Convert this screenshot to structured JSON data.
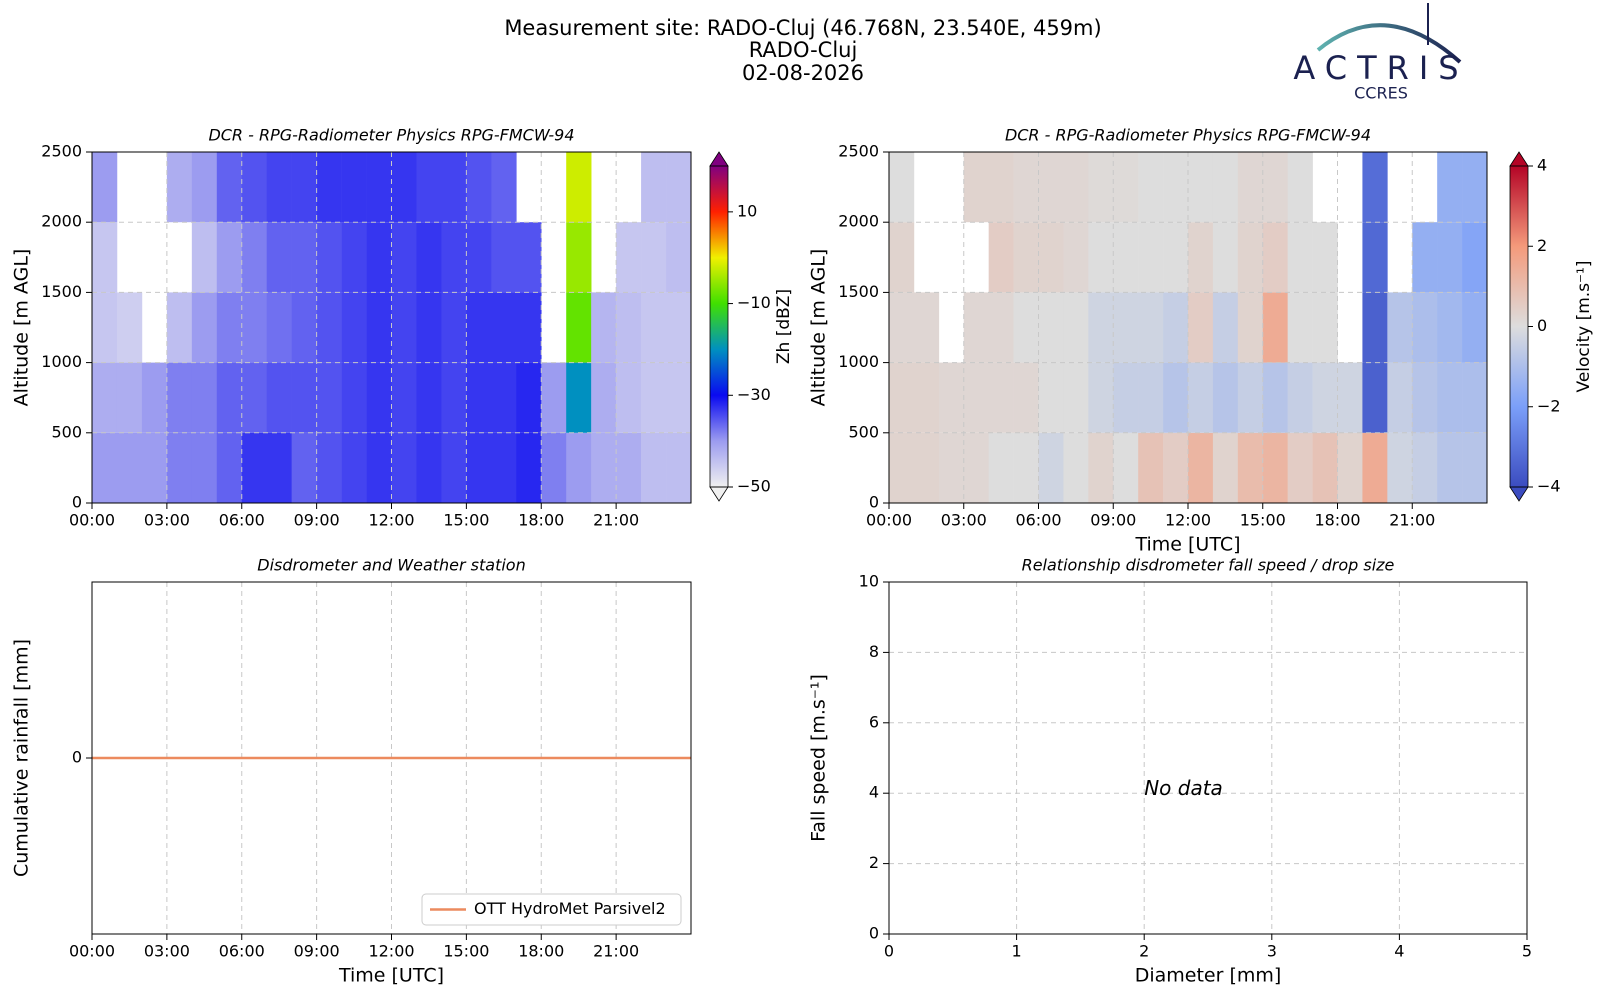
{
  "header": {
    "title_lines": [
      "Measurement site: RADO-Cluj (46.768N, 23.540E, 459m)",
      "RADO-Cluj",
      "02-08-2026"
    ]
  },
  "logo": {
    "name": "ACTRIS",
    "subtitle": "CCRES"
  },
  "chart_data": [
    {
      "type": "heatmap",
      "title": "DCR - RPG-Radiometer Physics RPG-FMCW-94",
      "ylabel": "Altitude [m AGL]",
      "xlim": [
        0,
        24
      ],
      "xticks": [
        {
          "value": 0,
          "label": "00:00"
        },
        {
          "value": 3,
          "label": "03:00"
        },
        {
          "value": 6,
          "label": "06:00"
        },
        {
          "value": 9,
          "label": "09:00"
        },
        {
          "value": 12,
          "label": "12:00"
        },
        {
          "value": 15,
          "label": "15:00"
        },
        {
          "value": 18,
          "label": "18:00"
        },
        {
          "value": 21,
          "label": "21:00"
        }
      ],
      "ylim": [
        0,
        2500
      ],
      "yticks": [
        0,
        500,
        1000,
        1500,
        2000,
        2500
      ],
      "grid": true,
      "x_edges": [
        0,
        1,
        2,
        3,
        4,
        5,
        6,
        7,
        8,
        9,
        10,
        11,
        12,
        13,
        14,
        15,
        16,
        17,
        18,
        19,
        20,
        21,
        22,
        23,
        24
      ],
      "y_edges": [
        0,
        500,
        1000,
        1500,
        2000,
        2500
      ],
      "z": [
        [
          -40,
          -40,
          -40,
          -38,
          -38,
          -36,
          -33,
          -33,
          -36,
          -35,
          -34,
          -33,
          -34,
          -33,
          -34,
          -33,
          -33,
          -32,
          -38,
          -40,
          -42,
          -42,
          -44,
          -44
        ],
        [
          -42,
          -42,
          -40,
          -38,
          -38,
          -36,
          -36,
          -35,
          -35,
          -35,
          -34,
          -33,
          -34,
          -33,
          -34,
          -33,
          -33,
          -32,
          -40,
          -20,
          -42,
          -44,
          -45,
          -45
        ],
        [
          -45,
          -46,
          null,
          -44,
          -40,
          -38,
          -38,
          -37,
          -36,
          -35,
          -34,
          -33,
          -34,
          -33,
          -34,
          -33,
          -33,
          -33,
          null,
          -8,
          -43,
          -44,
          -45,
          -45
        ],
        [
          -45,
          null,
          null,
          null,
          -44,
          -40,
          -38,
          -36,
          -36,
          -35,
          -34,
          -33,
          -34,
          -33,
          -34,
          -34,
          -35,
          -35,
          null,
          -5,
          null,
          -45,
          -45,
          -44
        ],
        [
          -40,
          null,
          null,
          -42,
          -40,
          -36,
          -35,
          -34,
          -34,
          -33,
          -33,
          -33,
          -33,
          -34,
          -34,
          -35,
          -36,
          null,
          null,
          -2,
          null,
          null,
          -44,
          -44
        ]
      ],
      "colorbar": {
        "label": "Zh [dBZ]",
        "clim": [
          -50,
          20
        ],
        "ticks": [
          {
            "value": -50,
            "label": "−50"
          },
          {
            "value": -30,
            "label": "−30"
          },
          {
            "value": -10,
            "label": "−10"
          },
          10
        ],
        "colors": [
          "#f0f0f0",
          "#9c9cf0",
          "#0a0af0",
          "#0090c0",
          "#40e000",
          "#f0f000",
          "#ff2000",
          "#800080"
        ],
        "extend": "both"
      }
    },
    {
      "type": "heatmap",
      "title": "DCR - RPG-Radiometer Physics RPG-FMCW-94",
      "xlabel": "Time [UTC]",
      "ylabel": "Altitude [m AGL]",
      "xlim": [
        0,
        24
      ],
      "xticks": [
        {
          "value": 0,
          "label": "00:00"
        },
        {
          "value": 3,
          "label": "03:00"
        },
        {
          "value": 6,
          "label": "06:00"
        },
        {
          "value": 9,
          "label": "09:00"
        },
        {
          "value": 12,
          "label": "12:00"
        },
        {
          "value": 15,
          "label": "15:00"
        },
        {
          "value": 18,
          "label": "18:00"
        },
        {
          "value": 21,
          "label": "21:00"
        }
      ],
      "ylim": [
        0,
        2500
      ],
      "yticks": [
        0,
        500,
        1000,
        1500,
        2000,
        2500
      ],
      "grid": true,
      "x_edges": [
        0,
        1,
        2,
        3,
        4,
        5,
        6,
        7,
        8,
        9,
        10,
        11,
        12,
        13,
        14,
        15,
        16,
        17,
        18,
        19,
        20,
        21,
        22,
        23,
        24
      ],
      "y_edges": [
        0,
        500,
        1000,
        1500,
        2000,
        2500
      ],
      "z": [
        [
          0.3,
          0.3,
          0.2,
          0.2,
          0,
          0,
          -0.3,
          0,
          0.3,
          0,
          0.8,
          0.5,
          1.2,
          0.3,
          1.0,
          1.2,
          0.5,
          0.8,
          0.3,
          1.5,
          -0.3,
          -0.5,
          -0.8,
          -0.8
        ],
        [
          0.3,
          0.3,
          0.2,
          0.2,
          0.2,
          0.2,
          0,
          0,
          -0.3,
          -0.5,
          -0.5,
          -0.8,
          -0.5,
          -0.8,
          -0.5,
          -0.8,
          -0.5,
          -0.3,
          -0.3,
          -3.5,
          -0.5,
          -0.8,
          -1,
          -1
        ],
        [
          0.2,
          0.2,
          null,
          0.2,
          0.2,
          0,
          0,
          0,
          -0.3,
          -0.3,
          -0.3,
          -0.5,
          0.5,
          -0.5,
          0.3,
          1.5,
          0,
          0,
          null,
          -3.5,
          -0.8,
          -1,
          -1.2,
          -1.5
        ],
        [
          0.3,
          null,
          null,
          null,
          0.5,
          0.3,
          0.3,
          0.2,
          0,
          0,
          0,
          0,
          0.3,
          0,
          0.3,
          0.5,
          0,
          0,
          null,
          -3.3,
          null,
          -1.5,
          -1.5,
          -1.8
        ],
        [
          0,
          null,
          null,
          0.3,
          0.3,
          0.2,
          0.2,
          0.2,
          0.1,
          0.1,
          0,
          0,
          0,
          0,
          0.2,
          0.2,
          0,
          null,
          null,
          -3.2,
          null,
          null,
          -1.5,
          -1.5
        ]
      ],
      "colorbar": {
        "label": "Velocity [m.s⁻¹]",
        "clim": [
          -4,
          4
        ],
        "ticks": [
          {
            "value": -4,
            "label": "−4"
          },
          {
            "value": -2,
            "label": "−2"
          },
          0,
          2,
          4
        ],
        "colors": [
          "#3b4cc0",
          "#7b9ff9",
          "#dddddd",
          "#f49a7b",
          "#b40426"
        ],
        "extend": "both"
      }
    },
    {
      "type": "line",
      "title": "Disdrometer and Weather station",
      "xlabel": "Time [UTC]",
      "ylabel": "Cumulative rainfall [mm]",
      "xlim": [
        0,
        24
      ],
      "xticks": [
        {
          "value": 0,
          "label": "00:00"
        },
        {
          "value": 3,
          "label": "03:00"
        },
        {
          "value": 6,
          "label": "06:00"
        },
        {
          "value": 9,
          "label": "09:00"
        },
        {
          "value": 12,
          "label": "12:00"
        },
        {
          "value": 15,
          "label": "15:00"
        },
        {
          "value": 18,
          "label": "18:00"
        },
        {
          "value": 21,
          "label": "21:00"
        }
      ],
      "ylim": [
        -0.055,
        0.055
      ],
      "yticks": [
        0
      ],
      "grid": true,
      "legend": "lower right",
      "x": [
        0,
        24
      ],
      "series": [
        {
          "name": "OTT HydroMet Parsivel2",
          "color": "#ec8a5e",
          "values": [
            0,
            0
          ]
        }
      ]
    },
    {
      "type": "scatter",
      "title": "Relationship disdrometer fall speed / drop size",
      "xlabel": "Diameter [mm]",
      "ylabel": "Fall speed [m.s⁻¹]",
      "xlim": [
        0,
        5
      ],
      "xticks": [
        0,
        1,
        2,
        3,
        4,
        5
      ],
      "ylim": [
        0,
        10
      ],
      "yticks": [
        0,
        2,
        4,
        6,
        8,
        10
      ],
      "grid": true,
      "annotation": "No data",
      "x": [],
      "values": []
    }
  ]
}
